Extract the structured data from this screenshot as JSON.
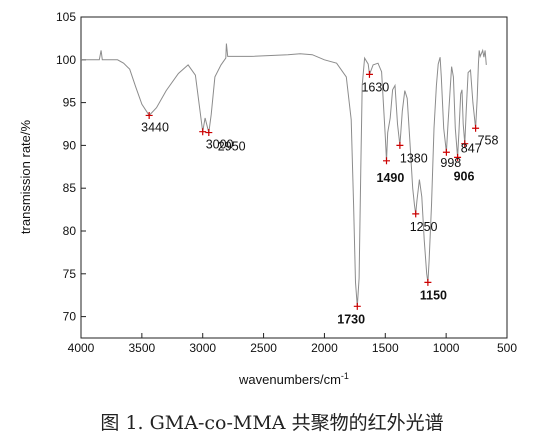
{
  "caption": "图 1. GMA-co-MMA 共聚物的红外光谱",
  "chart_data": {
    "type": "line",
    "xlabel": "wavenumbers/cm",
    "xlabel_sup": "-1",
    "ylabel": "transmission rate/%",
    "xlim": [
      4000,
      500
    ],
    "ylim": [
      67.5,
      105
    ],
    "x_ticks": [
      "4000",
      "3500",
      "3000",
      "2500",
      "2000",
      "1500",
      "1000",
      "500"
    ],
    "y_ticks": [
      "70",
      "75",
      "80",
      "85",
      "90",
      "95",
      "100",
      "105"
    ],
    "grid": false,
    "line_color": "#8c8c8c",
    "marker_color": "#cc0000",
    "spectrum": [
      [
        4000,
        100.0
      ],
      [
        3850,
        100.0
      ],
      [
        3835,
        101.1
      ],
      [
        3825,
        100.0
      ],
      [
        3700,
        100.0
      ],
      [
        3650,
        99.6
      ],
      [
        3600,
        98.9
      ],
      [
        3550,
        96.8
      ],
      [
        3500,
        94.8
      ],
      [
        3440,
        93.5
      ],
      [
        3380,
        94.4
      ],
      [
        3300,
        96.4
      ],
      [
        3200,
        98.4
      ],
      [
        3120,
        99.4
      ],
      [
        3060,
        98.2
      ],
      [
        3000,
        91.6
      ],
      [
        2980,
        93.2
      ],
      [
        2950,
        91.5
      ],
      [
        2930,
        93.6
      ],
      [
        2900,
        98.0
      ],
      [
        2850,
        99.4
      ],
      [
        2810,
        100.2
      ],
      [
        2805,
        101.9
      ],
      [
        2795,
        100.4
      ],
      [
        2600,
        100.4
      ],
      [
        2300,
        100.6
      ],
      [
        2200,
        100.7
      ],
      [
        2100,
        100.6
      ],
      [
        2000,
        100.0
      ],
      [
        1900,
        99.6
      ],
      [
        1820,
        98.0
      ],
      [
        1780,
        93.0
      ],
      [
        1760,
        83.0
      ],
      [
        1745,
        74.0
      ],
      [
        1730,
        71.2
      ],
      [
        1715,
        74.5
      ],
      [
        1700,
        88.0
      ],
      [
        1690,
        97.0
      ],
      [
        1670,
        100.2
      ],
      [
        1640,
        99.5
      ],
      [
        1630,
        98.3
      ],
      [
        1600,
        99.4
      ],
      [
        1560,
        99.6
      ],
      [
        1530,
        98.6
      ],
      [
        1500,
        91.0
      ],
      [
        1490,
        88.2
      ],
      [
        1480,
        91.5
      ],
      [
        1460,
        93.2
      ],
      [
        1440,
        96.5
      ],
      [
        1420,
        97.0
      ],
      [
        1400,
        92.5
      ],
      [
        1380,
        90.0
      ],
      [
        1360,
        94.0
      ],
      [
        1340,
        96.4
      ],
      [
        1320,
        95.5
      ],
      [
        1300,
        91.0
      ],
      [
        1275,
        85.0
      ],
      [
        1260,
        83.0
      ],
      [
        1250,
        82.0
      ],
      [
        1240,
        83.5
      ],
      [
        1220,
        86.0
      ],
      [
        1200,
        84.0
      ],
      [
        1180,
        79.0
      ],
      [
        1160,
        75.0
      ],
      [
        1150,
        74.0
      ],
      [
        1140,
        76.5
      ],
      [
        1120,
        83.0
      ],
      [
        1100,
        92.0
      ],
      [
        1080,
        97.0
      ],
      [
        1065,
        99.5
      ],
      [
        1050,
        100.3
      ],
      [
        1040,
        98.0
      ],
      [
        1020,
        92.0
      ],
      [
        998,
        89.2
      ],
      [
        985,
        92.5
      ],
      [
        965,
        97.0
      ],
      [
        955,
        99.2
      ],
      [
        940,
        98.0
      ],
      [
        925,
        92.0
      ],
      [
        906,
        88.6
      ],
      [
        895,
        91.5
      ],
      [
        880,
        96.0
      ],
      [
        870,
        96.5
      ],
      [
        860,
        92.5
      ],
      [
        847,
        90.2
      ],
      [
        835,
        94.0
      ],
      [
        820,
        98.5
      ],
      [
        800,
        98.8
      ],
      [
        780,
        95.0
      ],
      [
        758,
        92.0
      ],
      [
        745,
        95.5
      ],
      [
        735,
        99.5
      ],
      [
        728,
        101.1
      ],
      [
        720,
        100.4
      ],
      [
        700,
        101.1
      ],
      [
        690,
        100.3
      ],
      [
        680,
        101.1
      ],
      [
        670,
        99.4
      ]
    ],
    "peaks": [
      {
        "x": 3440,
        "y": 93.5,
        "label": "3440"
      },
      {
        "x": 3000,
        "y": 91.6,
        "label": "3000"
      },
      {
        "x": 2950,
        "y": 91.5,
        "label": "2950"
      },
      {
        "x": 1730,
        "y": 71.2,
        "label": "1730"
      },
      {
        "x": 1630,
        "y": 98.3,
        "label": "1630"
      },
      {
        "x": 1490,
        "y": 88.2,
        "label": "1490"
      },
      {
        "x": 1380,
        "y": 90.0,
        "label": "1380"
      },
      {
        "x": 1250,
        "y": 82.0,
        "label": "1250"
      },
      {
        "x": 1150,
        "y": 74.0,
        "label": "1150"
      },
      {
        "x": 998,
        "y": 89.2,
        "label": "998"
      },
      {
        "x": 906,
        "y": 88.6,
        "label": "906"
      },
      {
        "x": 847,
        "y": 90.2,
        "label": "847"
      },
      {
        "x": 758,
        "y": 92.0,
        "label": "758"
      }
    ]
  }
}
